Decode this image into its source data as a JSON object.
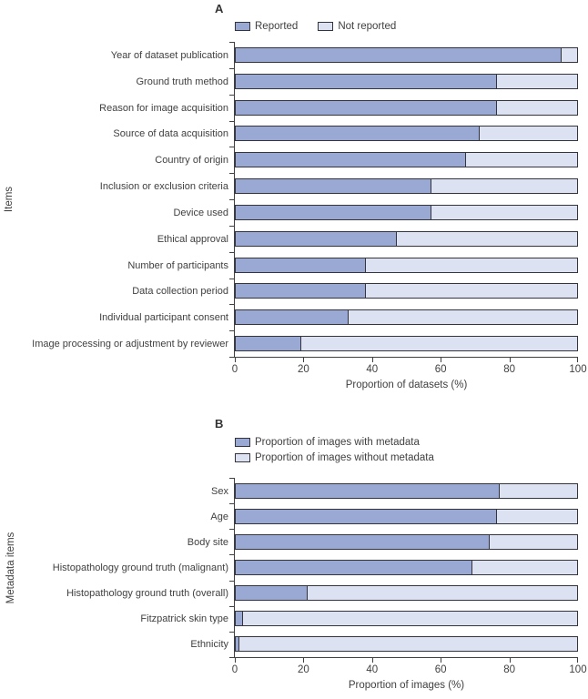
{
  "figure": {
    "background": "#ffffff"
  },
  "colors": {
    "fill_dark": "#9aa8d4",
    "fill_light": "#dde2f2",
    "bar_border": "#34343c",
    "axis": "#404040",
    "text": "#404040"
  },
  "chart_data": [
    {
      "type": "bar",
      "panel_label": "A",
      "orientation": "horizontal-stacked",
      "legend": [
        "Reported",
        "Not reported"
      ],
      "legend_position": "top-row",
      "categories": [
        "Year of dataset publication",
        "Ground truth method",
        "Reason for image acquisition",
        "Source of data acquisition",
        "Country of origin",
        "Inclusion or exclusion criteria",
        "Device used",
        "Ethical approval",
        "Number of participants",
        "Data collection period",
        "Individual participant consent",
        "Image processing or adjustment by reviewer"
      ],
      "series": [
        {
          "name": "Reported",
          "values": [
            95,
            76,
            76,
            71,
            67,
            57,
            57,
            47,
            38,
            38,
            33,
            19
          ]
        },
        {
          "name": "Not reported",
          "values": [
            5,
            24,
            24,
            29,
            33,
            43,
            43,
            53,
            62,
            62,
            67,
            81
          ]
        }
      ],
      "xlabel": "Proportion of datasets (%)",
      "ylabel": "Items",
      "xlim": [
        0,
        100
      ],
      "xticks": [
        0,
        20,
        40,
        60,
        80,
        100
      ],
      "xtick_labels": [
        "0",
        "20",
        "40",
        "60",
        "80",
        "100"
      ],
      "grid": false
    },
    {
      "type": "bar",
      "panel_label": "B",
      "orientation": "horizontal-stacked",
      "legend": [
        "Proportion of images with metadata",
        "Proportion of images without metadata"
      ],
      "legend_position": "top-column",
      "categories": [
        "Sex",
        "Age",
        "Body site",
        "Histopathology ground truth (malignant)",
        "Histopathology ground truth (overall)",
        "Fitzpatrick skin type",
        "Ethnicity"
      ],
      "series": [
        {
          "name": "Proportion of images with metadata",
          "values": [
            77,
            76,
            74,
            69,
            21,
            2,
            1
          ]
        },
        {
          "name": "Proportion of images without metadata",
          "values": [
            23,
            24,
            26,
            31,
            79,
            98,
            99
          ]
        }
      ],
      "xlabel": "Proportion of images (%)",
      "ylabel": "Metadata items",
      "xlim": [
        0,
        100
      ],
      "xticks": [
        0,
        20,
        40,
        60,
        80,
        100
      ],
      "xtick_labels": [
        "0",
        "20",
        "40",
        "60",
        "80",
        "100"
      ],
      "grid": false
    }
  ]
}
